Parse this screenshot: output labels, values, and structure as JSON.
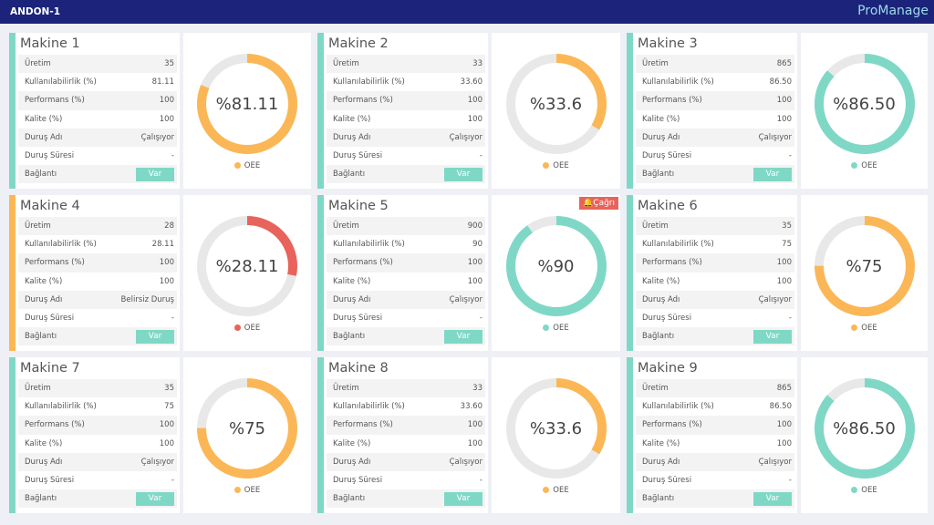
{
  "header": {
    "title": "ANDON-1",
    "logo": "ProManage"
  },
  "labels": [
    "Üretim",
    "Kullanılabilirlik (%)",
    "Performans (%)",
    "Kalite (%)",
    "Duruş Adı",
    "Duruş Süresi",
    "Bağlantı"
  ],
  "legend_label": "OEE",
  "colors": {
    "green": "#7fd8c5",
    "orange": "#fbb756",
    "red": "#e8635b",
    "track": "#e8e8e8"
  },
  "machines": [
    {
      "name": "Makine 1",
      "status": "green",
      "values": [
        "35",
        "81.11",
        "100",
        "100",
        "Çalışıyor",
        "-"
      ],
      "connection": "Var",
      "oee": 81.11,
      "oee_label": "%81.11",
      "oee_color": "orange"
    },
    {
      "name": "Makine 2",
      "status": "green",
      "values": [
        "33",
        "33.60",
        "100",
        "100",
        "Çalışıyor",
        "-"
      ],
      "connection": "Var",
      "oee": 33.6,
      "oee_label": "%33.6",
      "oee_color": "orange"
    },
    {
      "name": "Makine 3",
      "status": "green",
      "values": [
        "865",
        "86.50",
        "100",
        "100",
        "Çalışıyor",
        "-"
      ],
      "connection": "Var",
      "oee": 86.5,
      "oee_label": "%86.50",
      "oee_color": "green"
    },
    {
      "name": "Makine 4",
      "status": "orange",
      "values": [
        "28",
        "28.11",
        "100",
        "100",
        "Belirsiz Duruş",
        "-"
      ],
      "connection": "Var",
      "oee": 28.11,
      "oee_label": "%28.11",
      "oee_color": "red"
    },
    {
      "name": "Makine 5",
      "status": "green",
      "values": [
        "900",
        "90",
        "100",
        "100",
        "Çalışıyor",
        "-"
      ],
      "connection": "Var",
      "oee": 90,
      "oee_label": "%90",
      "oee_color": "green",
      "alert": "Çağrı"
    },
    {
      "name": "Makine 6",
      "status": "green",
      "values": [
        "35",
        "75",
        "100",
        "100",
        "Çalışıyor",
        "-"
      ],
      "connection": "Var",
      "oee": 75,
      "oee_label": "%75",
      "oee_color": "orange"
    },
    {
      "name": "Makine 7",
      "status": "green",
      "values": [
        "35",
        "75",
        "100",
        "100",
        "Çalışıyor",
        "-"
      ],
      "connection": "Var",
      "oee": 75,
      "oee_label": "%75",
      "oee_color": "orange"
    },
    {
      "name": "Makine 8",
      "status": "green",
      "values": [
        "33",
        "33.60",
        "100",
        "100",
        "Çalışıyor",
        "-"
      ],
      "connection": "Var",
      "oee": 33.6,
      "oee_label": "%33.6",
      "oee_color": "orange"
    },
    {
      "name": "Makine 9",
      "status": "green",
      "values": [
        "865",
        "86.50",
        "100",
        "100",
        "Çalışıyor",
        "-"
      ],
      "connection": "Var",
      "oee": 86.5,
      "oee_label": "%86.50",
      "oee_color": "green"
    }
  ]
}
